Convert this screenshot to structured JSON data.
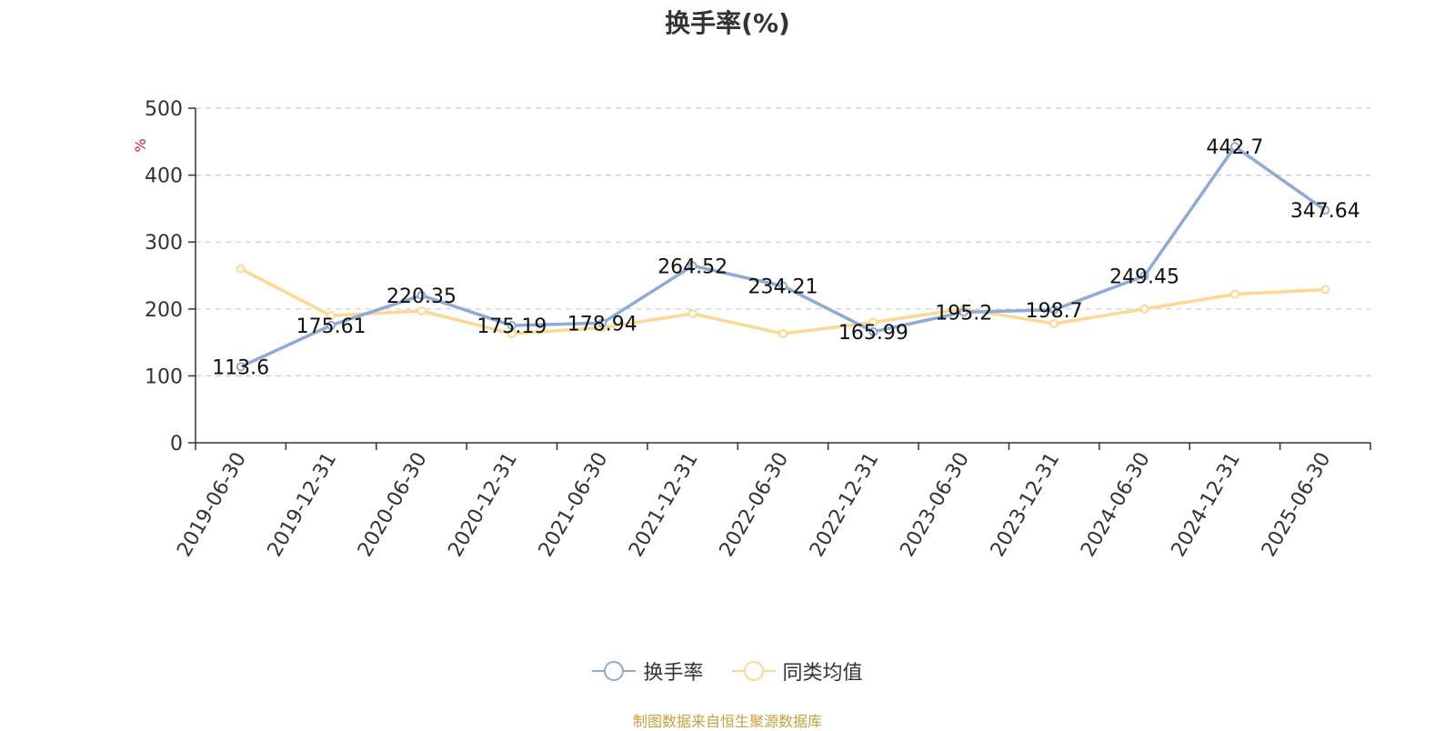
{
  "chart_data": {
    "type": "line",
    "title": "换手率(%)",
    "ylabel": "%",
    "categories": [
      "2019-06-30",
      "2019-12-31",
      "2020-06-30",
      "2020-12-31",
      "2021-06-30",
      "2021-12-31",
      "2022-06-30",
      "2022-12-31",
      "2023-06-30",
      "2023-12-31",
      "2024-06-30",
      "2024-12-31",
      "2025-06-30"
    ],
    "series": [
      {
        "name": "换手率",
        "color": "#8eaad6",
        "values": [
          113.6,
          175.61,
          220.35,
          175.19,
          178.94,
          264.52,
          234.21,
          165.99,
          195.2,
          198.7,
          249.45,
          442.7,
          347.64
        ],
        "labels": [
          "113.6",
          "175.61",
          "220.35",
          "175.19",
          "178.94",
          "264.52",
          "234.21",
          "165.99",
          "195.2",
          "198.7",
          "249.45",
          "442.7",
          "347.64"
        ]
      },
      {
        "name": "同类均值",
        "color": "#fcd891",
        "values": [
          260,
          190,
          197,
          163,
          172,
          193,
          163,
          180,
          200,
          178,
          200,
          222,
          229
        ]
      }
    ],
    "ylim": [
      0,
      500
    ],
    "yticks": [
      "0",
      "100",
      "200",
      "300",
      "400",
      "500"
    ],
    "grid": true,
    "legend_position": "bottom"
  },
  "source_text": "制图数据来自恒生聚源数据库"
}
